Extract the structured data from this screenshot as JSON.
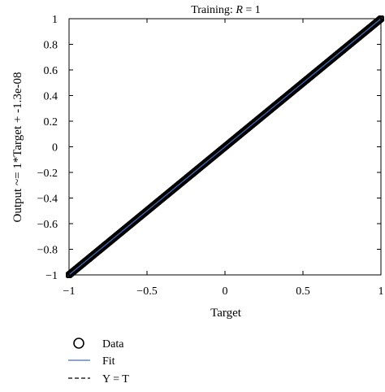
{
  "chart_data": {
    "type": "scatter",
    "title_prefix": "Training: ",
    "title_var": "R",
    "title_suffix": " = 1",
    "xlabel": "Target",
    "ylabel": "Output ~= 1*Target + -1.3e-08",
    "xlim": [
      -1,
      1
    ],
    "ylim": [
      -1,
      1
    ],
    "x_ticks": [
      -1,
      -0.5,
      0,
      0.5,
      1
    ],
    "x_tick_labels": [
      "−1",
      "−0.5",
      "0",
      "0.5",
      "1"
    ],
    "y_ticks": [
      1,
      0.8,
      0.6,
      0.4,
      0.2,
      0,
      -0.2,
      -0.4,
      -0.6,
      -0.8,
      -1
    ],
    "y_tick_labels": [
      "1",
      "0.8",
      "0.6",
      "0.4",
      "0.2",
      "0",
      "−0.2",
      "−0.4",
      "−0.6",
      "−0.8",
      "−1"
    ],
    "grid": false,
    "legend_placement": "below",
    "series": [
      {
        "name": "Data",
        "marker": "open-circle",
        "color": "#000000",
        "x_start": -1,
        "x_end": 1,
        "relation": "y = x"
      },
      {
        "name": "Fit",
        "style": "solid-line",
        "color": "#4a6fb5",
        "slope": 1,
        "intercept": -1.3e-08
      },
      {
        "name": "Y = T",
        "style": "dashed-line",
        "color": "#000000",
        "slope": 1,
        "intercept": 0
      }
    ]
  }
}
